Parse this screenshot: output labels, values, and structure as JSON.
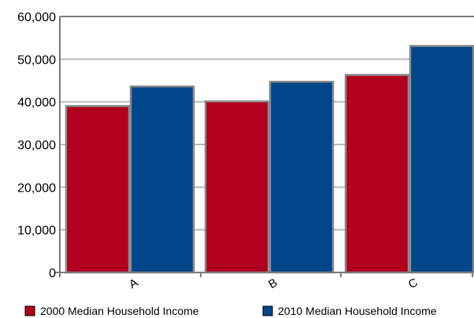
{
  "chart_data": {
    "type": "bar",
    "categories": [
      "A",
      "B",
      "C"
    ],
    "series": [
      {
        "name": "2000 Median Household Income",
        "values": [
          39000,
          40100,
          46300
        ],
        "color": "#b0001e"
      },
      {
        "name": "2010 Median Household Income",
        "values": [
          43600,
          44700,
          53100
        ],
        "color": "#00468b"
      }
    ],
    "title": "",
    "xlabel": "",
    "ylabel": "",
    "ylim": [
      0,
      60000
    ],
    "yticks": [
      "0",
      "10,000",
      "20,000",
      "30,000",
      "40,000",
      "50,000",
      "60,000"
    ],
    "grid": true,
    "legend_position": "bottom"
  }
}
